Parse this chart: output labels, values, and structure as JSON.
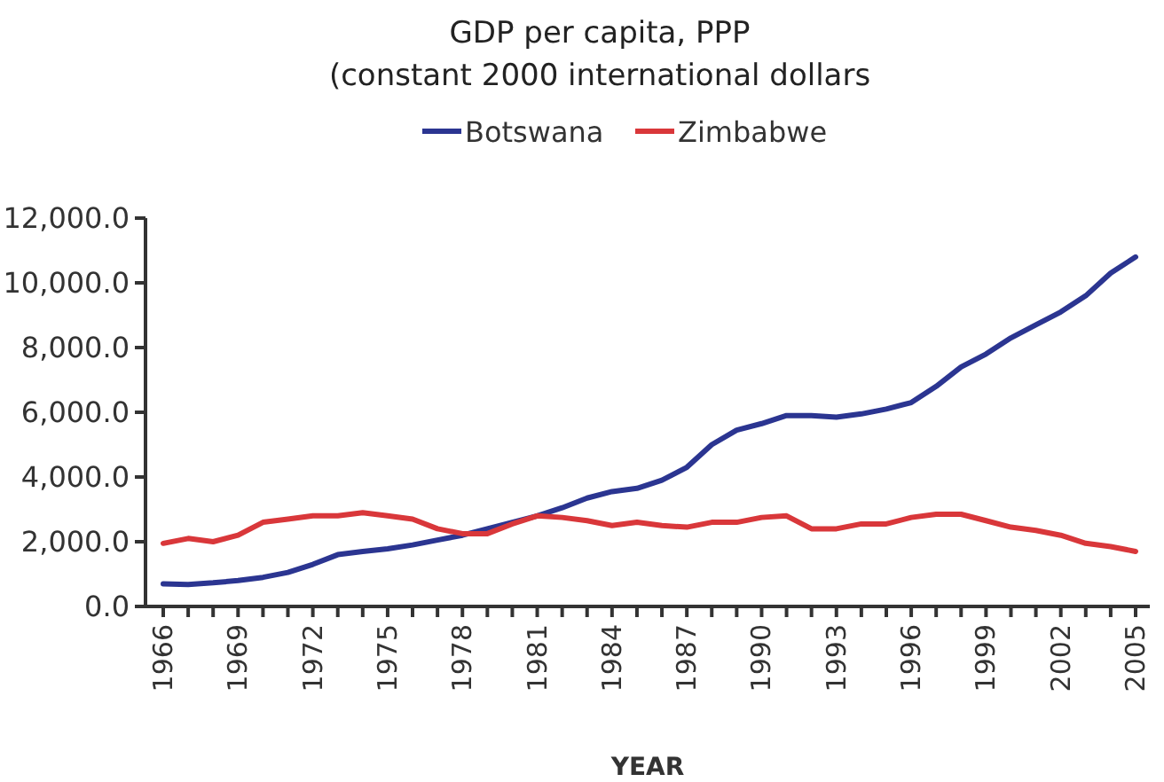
{
  "chart_data": {
    "type": "line",
    "title": "GDP per capita, PPP\n(constant 2000 international dollars",
    "xlabel": "YEAR",
    "categories": [
      "1966",
      null,
      null,
      "1969",
      null,
      null,
      "1972",
      null,
      null,
      "1975",
      null,
      null,
      "1978",
      null,
      null,
      "1981",
      null,
      null,
      "1984",
      null,
      null,
      "1987",
      null,
      null,
      "1990",
      null,
      null,
      "1993",
      null,
      null,
      "1996",
      null,
      null,
      "1999",
      null,
      null,
      "2002",
      null,
      null,
      "2005"
    ],
    "series": [
      {
        "name": "Botswana",
        "color": "#2b3591",
        "values": [
          700,
          680,
          730,
          800,
          900,
          1050,
          1300,
          1600,
          1700,
          1780,
          1900,
          2050,
          2200,
          2400,
          2600,
          2800,
          3050,
          3350,
          3550,
          3650,
          3900,
          4300,
          5000,
          5450,
          5650,
          5900,
          5900,
          5850,
          5950,
          6100,
          6300,
          6800,
          7400,
          7800,
          8300,
          8700,
          9100,
          9600,
          10300,
          10800
        ]
      },
      {
        "name": "Zimbabwe",
        "color": "#d9373a",
        "values": [
          1950,
          2100,
          2000,
          2200,
          2600,
          2700,
          2800,
          2800,
          2900,
          2800,
          2700,
          2400,
          2250,
          2250,
          2550,
          2800,
          2750,
          2650,
          2500,
          2600,
          2500,
          2450,
          2600,
          2600,
          2750,
          2800,
          2400,
          2400,
          2550,
          2550,
          2750,
          2850,
          2850,
          2650,
          2450,
          2350,
          2200,
          1950,
          1850,
          1700
        ]
      }
    ],
    "ylim": [
      0,
      12000
    ],
    "yticks": [
      {
        "value": 0,
        "label": "0.0"
      },
      {
        "value": 2000,
        "label": "2,000.0"
      },
      {
        "value": 4000,
        "label": "4,000.0"
      },
      {
        "value": 6000,
        "label": "6,000.0"
      },
      {
        "value": 8000,
        "label": "8,000.0"
      },
      {
        "value": 10000,
        "label": "10,000.0"
      },
      {
        "value": 12000,
        "label": "12,000.0"
      }
    ],
    "legend": "top",
    "grid": false,
    "marker": "none",
    "line_style": "solid"
  }
}
